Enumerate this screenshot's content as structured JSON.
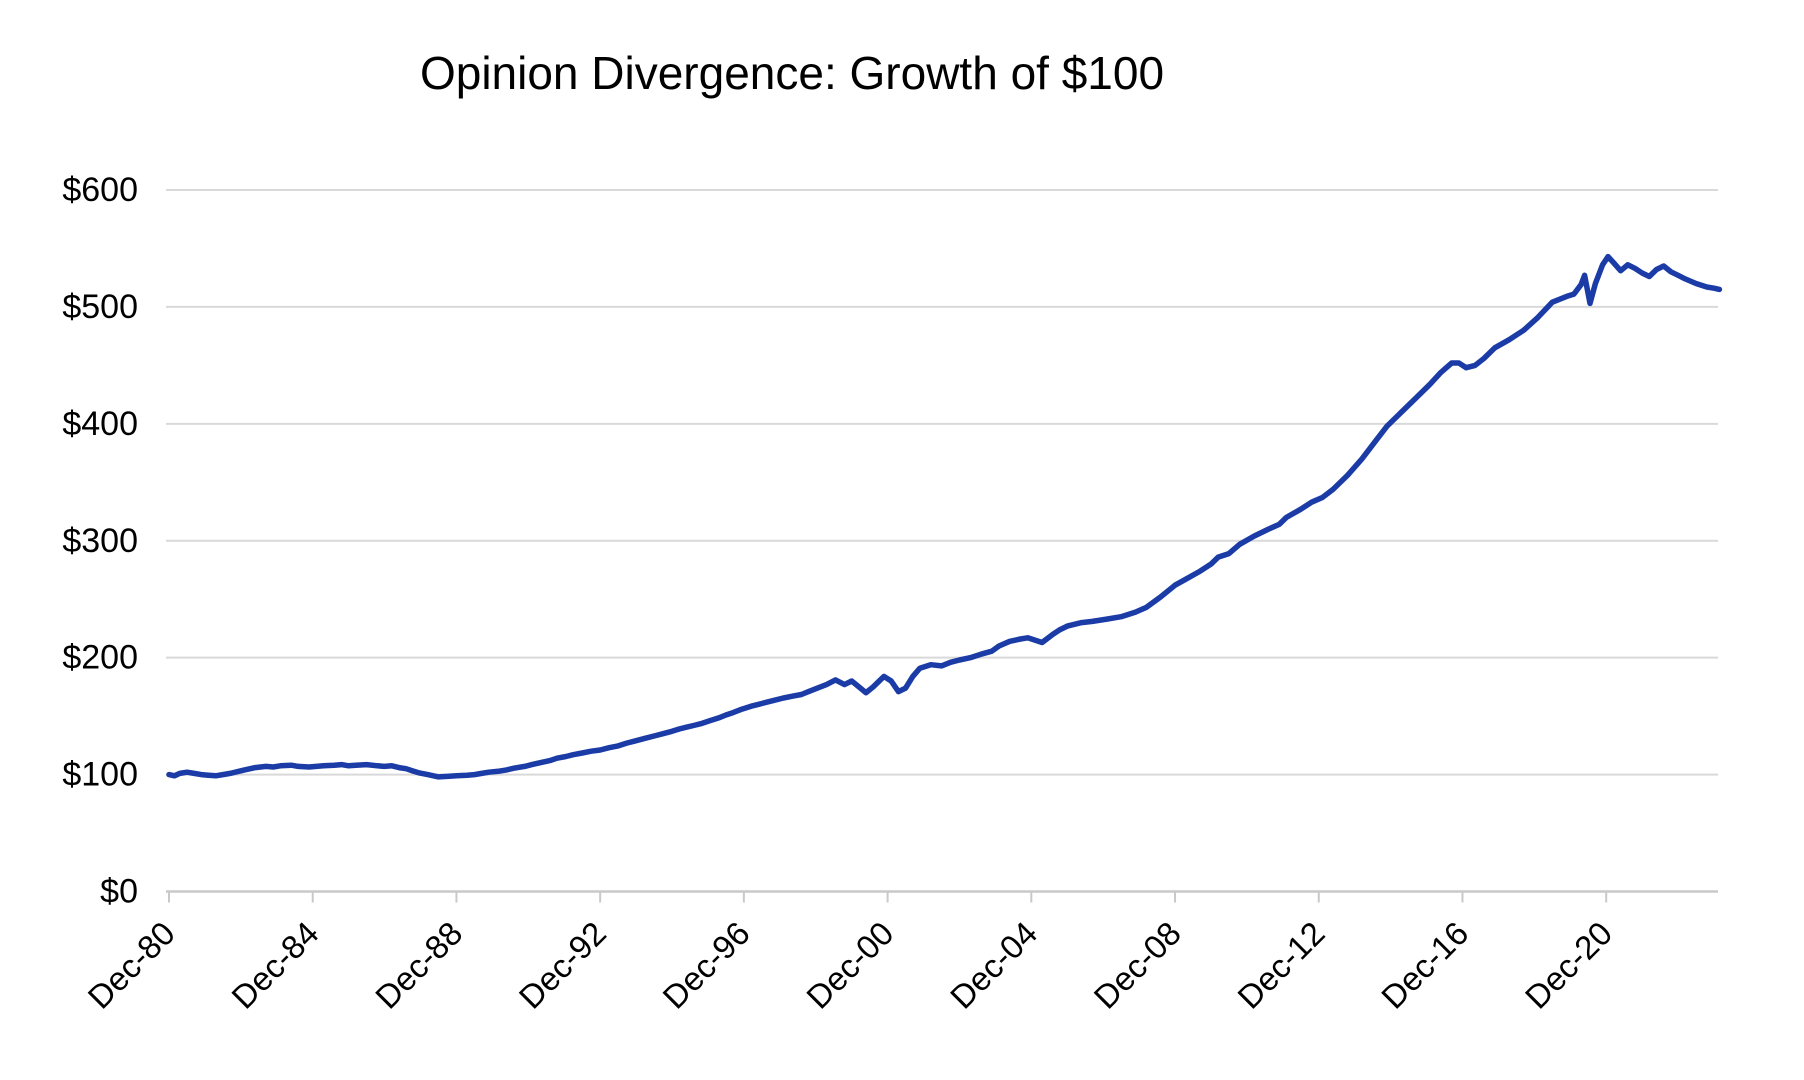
{
  "chart_data": {
    "type": "line",
    "title": "Opinion Divergence: Growth of $100",
    "xlabel": "",
    "ylabel": "",
    "legend": false,
    "grid": true,
    "x_axis": {
      "unit": "years since Dec-1980",
      "min": 0,
      "max": 43.3,
      "tick_interval_years": 4,
      "tick_labels": [
        "Dec-80",
        "Dec-84",
        "Dec-88",
        "Dec-92",
        "Dec-96",
        "Dec-00",
        "Dec-04",
        "Dec-08",
        "Dec-12",
        "Dec-16",
        "Dec-20"
      ]
    },
    "y_axis": {
      "min": 0,
      "max": 600,
      "tick_interval": 100,
      "tick_labels": [
        "$0",
        "$100",
        "$200",
        "$300",
        "$400",
        "$500",
        "$600"
      ]
    },
    "colors": {
      "line": "#1B3CA6",
      "gridline": "#D9D9D9",
      "axis": "#C9C9C9",
      "text": "#000000",
      "background": "#FFFFFF"
    },
    "series": [
      {
        "name": "Growth of $100",
        "color": "#1B3CA6",
        "points": [
          [
            0,
            100
          ],
          [
            0.15,
            99
          ],
          [
            0.3,
            101
          ],
          [
            0.5,
            102
          ],
          [
            0.7,
            101
          ],
          [
            0.9,
            100
          ],
          [
            1.1,
            99.5
          ],
          [
            1.3,
            99
          ],
          [
            1.5,
            100
          ],
          [
            1.7,
            101
          ],
          [
            1.9,
            102.5
          ],
          [
            2.1,
            104
          ],
          [
            2.4,
            106
          ],
          [
            2.7,
            107
          ],
          [
            2.9,
            106.5
          ],
          [
            3.1,
            107.5
          ],
          [
            3.4,
            108
          ],
          [
            3.6,
            107
          ],
          [
            3.9,
            106.5
          ],
          [
            4.1,
            107
          ],
          [
            4.3,
            107.5
          ],
          [
            4.6,
            108
          ],
          [
            4.8,
            108.5
          ],
          [
            5.0,
            107.5
          ],
          [
            5.2,
            108
          ],
          [
            5.5,
            108.5
          ],
          [
            5.8,
            107.5
          ],
          [
            6.0,
            107
          ],
          [
            6.2,
            107.5
          ],
          [
            6.4,
            106
          ],
          [
            6.6,
            105
          ],
          [
            6.8,
            103
          ],
          [
            6.95,
            101.5
          ],
          [
            7.2,
            100
          ],
          [
            7.5,
            98
          ],
          [
            7.8,
            98.5
          ],
          [
            8.0,
            99
          ],
          [
            8.3,
            99.5
          ],
          [
            8.5,
            100
          ],
          [
            8.7,
            101
          ],
          [
            8.9,
            102
          ],
          [
            9.2,
            103
          ],
          [
            9.4,
            104
          ],
          [
            9.6,
            105.5
          ],
          [
            9.9,
            107
          ],
          [
            10.1,
            108.5
          ],
          [
            10.3,
            110
          ],
          [
            10.6,
            112
          ],
          [
            10.8,
            114
          ],
          [
            11.05,
            115.5
          ],
          [
            11.25,
            117
          ],
          [
            11.5,
            118.5
          ],
          [
            11.75,
            120
          ],
          [
            12.0,
            121
          ],
          [
            12.25,
            123
          ],
          [
            12.5,
            124.5
          ],
          [
            12.75,
            127
          ],
          [
            13.0,
            129
          ],
          [
            13.25,
            131
          ],
          [
            13.5,
            133
          ],
          [
            13.75,
            135
          ],
          [
            14.0,
            137
          ],
          [
            14.2,
            139
          ],
          [
            14.4,
            140.5
          ],
          [
            14.6,
            142
          ],
          [
            14.8,
            143.5
          ],
          [
            15.05,
            146
          ],
          [
            15.3,
            148.5
          ],
          [
            15.5,
            151
          ],
          [
            15.7,
            153
          ],
          [
            15.95,
            156
          ],
          [
            16.2,
            158.5
          ],
          [
            16.4,
            160
          ],
          [
            16.65,
            162
          ],
          [
            16.9,
            164
          ],
          [
            17.1,
            165.5
          ],
          [
            17.35,
            167
          ],
          [
            17.6,
            168.5
          ],
          [
            17.8,
            171
          ],
          [
            18.05,
            174
          ],
          [
            18.3,
            177
          ],
          [
            18.55,
            181
          ],
          [
            18.8,
            177
          ],
          [
            19.0,
            180
          ],
          [
            19.2,
            175
          ],
          [
            19.4,
            170
          ],
          [
            19.6,
            175
          ],
          [
            19.9,
            184
          ],
          [
            20.1,
            180
          ],
          [
            20.3,
            171
          ],
          [
            20.5,
            174
          ],
          [
            20.7,
            184
          ],
          [
            20.9,
            191
          ],
          [
            21.2,
            194
          ],
          [
            21.5,
            193
          ],
          [
            21.75,
            196
          ],
          [
            22.0,
            198
          ],
          [
            22.3,
            200
          ],
          [
            22.6,
            203
          ],
          [
            22.9,
            205.5
          ],
          [
            23.1,
            210
          ],
          [
            23.4,
            214
          ],
          [
            23.7,
            216
          ],
          [
            23.9,
            217
          ],
          [
            24.1,
            215
          ],
          [
            24.3,
            213
          ],
          [
            24.6,
            220
          ],
          [
            24.8,
            224
          ],
          [
            25.0,
            227
          ],
          [
            25.4,
            230
          ],
          [
            25.7,
            231
          ],
          [
            26.1,
            233
          ],
          [
            26.5,
            235
          ],
          [
            26.9,
            239
          ],
          [
            27.2,
            243
          ],
          [
            27.6,
            252
          ],
          [
            28.0,
            262
          ],
          [
            28.35,
            268
          ],
          [
            28.7,
            274
          ],
          [
            29.0,
            280
          ],
          [
            29.2,
            286
          ],
          [
            29.5,
            289
          ],
          [
            29.8,
            297
          ],
          [
            30.2,
            304
          ],
          [
            30.6,
            310
          ],
          [
            30.9,
            314
          ],
          [
            31.1,
            320
          ],
          [
            31.5,
            327
          ],
          [
            31.8,
            333
          ],
          [
            32.1,
            337
          ],
          [
            32.4,
            344
          ],
          [
            32.8,
            356
          ],
          [
            33.2,
            370
          ],
          [
            33.6,
            386
          ],
          [
            33.9,
            398
          ],
          [
            34.3,
            410
          ],
          [
            34.7,
            422
          ],
          [
            35.1,
            434
          ],
          [
            35.4,
            444
          ],
          [
            35.7,
            452
          ],
          [
            35.9,
            452
          ],
          [
            36.1,
            448
          ],
          [
            36.35,
            450
          ],
          [
            36.6,
            456
          ],
          [
            36.9,
            465
          ],
          [
            37.3,
            472
          ],
          [
            37.7,
            480
          ],
          [
            38.1,
            491
          ],
          [
            38.5,
            504
          ],
          [
            38.9,
            509
          ],
          [
            39.1,
            511
          ],
          [
            39.3,
            519
          ],
          [
            39.4,
            527
          ],
          [
            39.55,
            503
          ],
          [
            39.7,
            520
          ],
          [
            39.9,
            536
          ],
          [
            40.05,
            543
          ],
          [
            40.2,
            538
          ],
          [
            40.4,
            531
          ],
          [
            40.6,
            536
          ],
          [
            40.8,
            533
          ],
          [
            41.0,
            529
          ],
          [
            41.2,
            526
          ],
          [
            41.4,
            532
          ],
          [
            41.6,
            535
          ],
          [
            41.8,
            530
          ],
          [
            42.0,
            527
          ],
          [
            42.2,
            524
          ],
          [
            42.5,
            520
          ],
          [
            42.8,
            517
          ],
          [
            43.0,
            516
          ],
          [
            43.15,
            515
          ]
        ]
      }
    ]
  }
}
